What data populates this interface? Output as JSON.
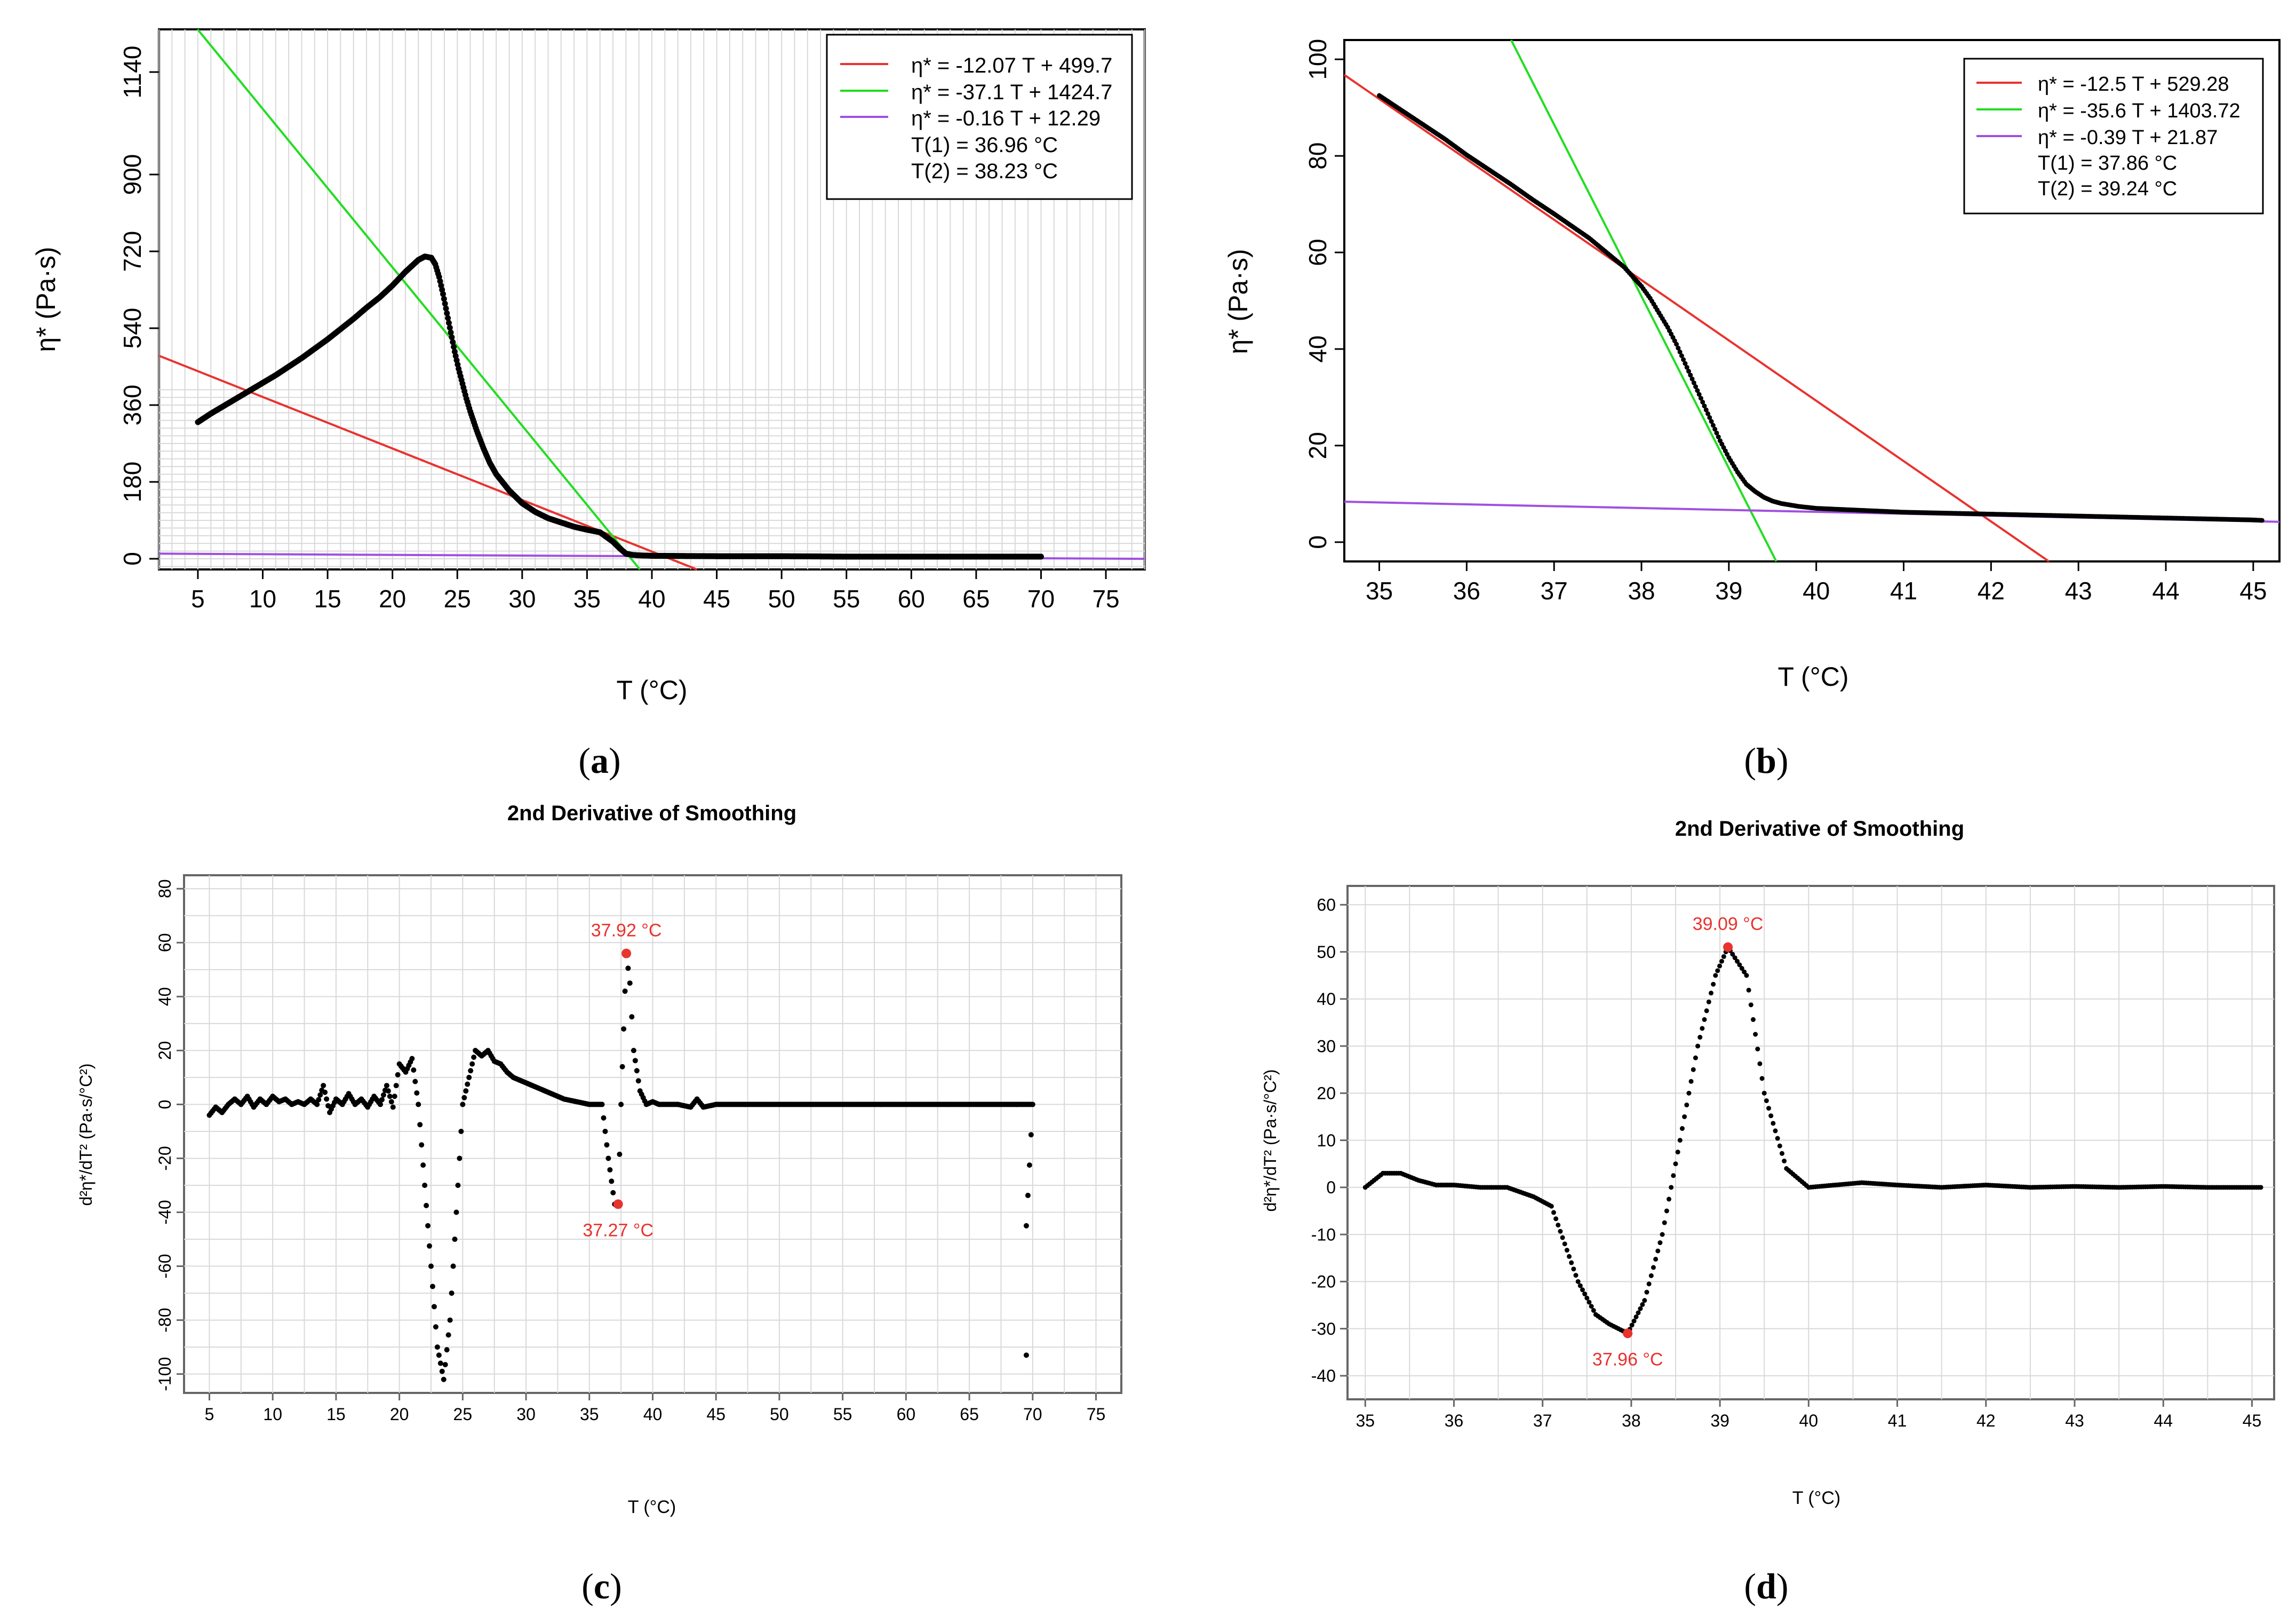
{
  "colors": {
    "red": "#e8332e",
    "green": "#22dd22",
    "purple": "#a050e0",
    "grid": "#d9d9d9",
    "data": "#000000",
    "annot": "#e8332e",
    "panel_bg": "#ffffff"
  },
  "panels": [
    {
      "label": "(a)",
      "label_parts": [
        "(",
        "a",
        ")"
      ],
      "title": "",
      "xlabel": "T (°C)",
      "ylabel": "η* (Pa·s)",
      "legend": {
        "lines": [
          {
            "text": "η* = -12.07 T + 499.7",
            "color": "red"
          },
          {
            "text": "η* = -37.1 T + 1424.7",
            "color": "green"
          },
          {
            "text": "η* = -0.16 T + 12.29",
            "color": "purple"
          }
        ],
        "extra": [
          "T(1) = 36.96 °C",
          "T(2) = 38.23 °C"
        ]
      }
    },
    {
      "label": "(b)",
      "label_parts": [
        "(",
        "b",
        ")"
      ],
      "title": "",
      "xlabel": "T (°C)",
      "ylabel": "η* (Pa·s)",
      "legend": {
        "lines": [
          {
            "text": "η* = -12.5 T + 529.28",
            "color": "red"
          },
          {
            "text": "η* = -35.6 T + 1403.72",
            "color": "green"
          },
          {
            "text": "η* = -0.39 T + 21.87",
            "color": "purple"
          }
        ],
        "extra": [
          "T(1) = 37.86 °C",
          "T(2) = 39.24 °C"
        ]
      }
    },
    {
      "label": "(c)",
      "label_parts": [
        "(",
        "c",
        ")"
      ],
      "title": "2nd Derivative of Smoothing",
      "xlabel": "T (°C)",
      "ylabel": "d²η*/dT² (Pa·s/°C²)",
      "annotations": [
        {
          "text": "37.92 °C",
          "x": 37.92,
          "y": 56
        },
        {
          "text": "37.27 °C",
          "x": 37.27,
          "y": -37
        }
      ]
    },
    {
      "label": "(d)",
      "label_parts": [
        "(",
        "d",
        ")"
      ],
      "title": "2nd Derivative of Smoothing",
      "xlabel": "T (°C)",
      "ylabel": "d²η*/dT² (Pa·s/°C²)",
      "annotations": [
        {
          "text": "39.09 °C",
          "x": 39.09,
          "y": 51
        },
        {
          "text": "37.96 °C",
          "x": 37.96,
          "y": -31
        }
      ]
    }
  ],
  "chart_data": [
    {
      "type": "scatter",
      "panel": "a",
      "xlim": [
        2,
        78
      ],
      "ylim": [
        -25,
        1240
      ],
      "xticks": [
        5,
        10,
        15,
        20,
        25,
        30,
        35,
        40,
        45,
        50,
        55,
        60,
        65,
        70,
        75
      ],
      "yticks": [
        0,
        180,
        360,
        540,
        720,
        900,
        1140
      ],
      "grid": true,
      "series": [
        {
          "name": "η* data",
          "type": "scatter",
          "color": "data",
          "x": [
            5,
            6,
            7,
            8,
            9,
            10,
            11,
            12,
            13,
            14,
            15,
            16,
            17,
            18,
            19,
            20,
            21,
            22,
            22.5,
            23,
            23.3,
            23.6,
            23.9,
            24.2,
            24.5,
            24.8,
            25.1,
            25.4,
            25.7,
            26,
            26.5,
            27,
            27.5,
            28,
            29,
            30,
            31,
            32,
            33,
            34,
            35,
            36,
            37,
            37.5,
            38,
            38.5,
            39,
            40,
            45,
            50,
            55,
            60,
            65,
            70
          ],
          "y": [
            320,
            340,
            358,
            376,
            394,
            412,
            430,
            450,
            470,
            492,
            514,
            538,
            562,
            588,
            612,
            640,
            672,
            700,
            708,
            705,
            690,
            660,
            620,
            575,
            530,
            485,
            445,
            410,
            375,
            345,
            300,
            260,
            225,
            198,
            160,
            130,
            110,
            95,
            85,
            75,
            68,
            62,
            40,
            25,
            12,
            9,
            8,
            7,
            6,
            6,
            5,
            5,
            5,
            5
          ]
        },
        {
          "name": "η* = -12.07 T + 499.7",
          "type": "line",
          "color": "red",
          "slope": -12.07,
          "intercept": 499.7,
          "x": [
            2,
            78
          ]
        },
        {
          "name": "η* = -37.1 T + 1424.7",
          "type": "line",
          "color": "green",
          "slope": -37.1,
          "intercept": 1424.7,
          "x": [
            2,
            78
          ]
        },
        {
          "name": "η* = -0.16 T + 12.29",
          "type": "line",
          "color": "purple",
          "slope": -0.16,
          "intercept": 12.29,
          "x": [
            2,
            78
          ]
        }
      ]
    },
    {
      "type": "scatter",
      "panel": "b",
      "xlim": [
        34.6,
        45.3
      ],
      "ylim": [
        -4,
        104
      ],
      "xticks": [
        35,
        36,
        37,
        38,
        39,
        40,
        41,
        42,
        43,
        44,
        45
      ],
      "yticks": [
        0,
        20,
        40,
        60,
        80,
        100
      ],
      "grid": false,
      "series": [
        {
          "name": "η* data",
          "type": "scatter",
          "color": "data",
          "x": [
            35,
            35.25,
            35.5,
            35.75,
            36,
            36.25,
            36.5,
            36.75,
            37,
            37.2,
            37.4,
            37.6,
            37.7,
            37.8,
            37.9,
            38,
            38.1,
            38.2,
            38.3,
            38.4,
            38.5,
            38.6,
            38.7,
            38.8,
            38.9,
            39,
            39.1,
            39.2,
            39.3,
            39.4,
            39.5,
            39.6,
            39.8,
            40,
            40.5,
            41,
            41.5,
            42,
            42.5,
            43,
            43.5,
            44,
            44.5,
            45,
            45.1
          ],
          "y": [
            92.5,
            89.5,
            86.5,
            83.5,
            80.2,
            77.2,
            74.2,
            71,
            68,
            65.5,
            63,
            60,
            58.5,
            57,
            55,
            53,
            50.5,
            47.5,
            44.5,
            41,
            37,
            33,
            29,
            25,
            21,
            17.5,
            14.5,
            12,
            10.5,
            9.3,
            8.5,
            8,
            7.4,
            7,
            6.6,
            6.2,
            6,
            5.8,
            5.6,
            5.4,
            5.2,
            5,
            4.8,
            4.6,
            4.5
          ]
        },
        {
          "name": "η* = -12.5 T + 529.28",
          "type": "line",
          "color": "red",
          "slope": -12.5,
          "intercept": 529.28,
          "x": [
            34.6,
            45.3
          ]
        },
        {
          "name": "η* = -35.6 T + 1403.72",
          "type": "line",
          "color": "green",
          "slope": -35.6,
          "intercept": 1403.72,
          "x": [
            34.6,
            45.3
          ]
        },
        {
          "name": "η* = -0.39 T + 21.87",
          "type": "line",
          "color": "purple",
          "slope": -0.39,
          "intercept": 21.87,
          "x": [
            34.6,
            45.3
          ]
        }
      ]
    },
    {
      "type": "scatter",
      "panel": "c",
      "title": "2nd Derivative of Smoothing",
      "xlim": [
        3,
        77
      ],
      "ylim": [
        -107,
        85
      ],
      "xticks": [
        5,
        10,
        15,
        20,
        25,
        30,
        35,
        40,
        45,
        50,
        55,
        60,
        65,
        70,
        75
      ],
      "yticks": [
        -100,
        -80,
        -60,
        -40,
        -20,
        0,
        20,
        40,
        60,
        80
      ],
      "grid": true,
      "series": [
        {
          "name": "2nd derivative",
          "type": "scatter",
          "color": "data",
          "x": [
            5,
            5.5,
            6,
            6.5,
            7,
            7.5,
            8,
            8.5,
            9,
            9.5,
            10,
            10.5,
            11,
            11.5,
            12,
            12.5,
            13,
            13.5,
            14,
            14.5,
            15,
            15.5,
            16,
            16.5,
            17,
            17.5,
            18,
            18.5,
            19,
            19.5,
            20,
            20.5,
            21,
            21.5,
            22,
            22.5,
            23,
            23.5,
            24,
            24.5,
            25,
            25.5,
            26,
            26.5,
            27,
            27.5,
            28,
            28.5,
            29,
            29.5,
            30,
            31,
            32,
            33,
            34,
            35,
            36,
            36.5,
            37,
            37.27,
            37.5,
            37.92,
            38.2,
            38.5,
            39,
            39.5,
            40,
            40.5,
            41,
            42,
            43,
            43.5,
            44,
            45,
            50,
            55,
            60,
            65,
            69.5,
            70,
            69.5,
            69.5
          ],
          "y": [
            -4,
            -1,
            -3,
            0,
            2,
            0,
            3,
            -1,
            2,
            0,
            3,
            1,
            2,
            0,
            1,
            0,
            2,
            0,
            7,
            -3,
            2,
            0,
            4,
            0,
            2,
            -1,
            3,
            0,
            7,
            -1,
            15,
            12,
            17,
            0,
            -30,
            -60,
            -90,
            -102,
            -80,
            -40,
            0,
            10,
            20,
            18,
            20,
            16,
            15,
            12,
            10,
            9,
            8,
            6,
            4,
            2,
            1,
            0,
            0,
            -20,
            -37,
            -37,
            0,
            56,
            45,
            20,
            5,
            0,
            1,
            0,
            0,
            0,
            -1,
            2,
            -1,
            0,
            0,
            0,
            0,
            0,
            0,
            0,
            -45,
            -93
          ]
        },
        {
          "name": "annotated points",
          "type": "points",
          "color": "red",
          "x": [
            37.92,
            37.27
          ],
          "y": [
            56,
            -37
          ]
        }
      ]
    },
    {
      "type": "scatter",
      "panel": "d",
      "title": "2nd Derivative of Smoothing",
      "xlim": [
        34.8,
        45.25
      ],
      "ylim": [
        -45,
        64
      ],
      "xticks": [
        35,
        36,
        37,
        38,
        39,
        40,
        41,
        42,
        43,
        44,
        45
      ],
      "yticks": [
        -40,
        -30,
        -20,
        -10,
        0,
        10,
        20,
        30,
        40,
        50,
        60
      ],
      "grid": true,
      "series": [
        {
          "name": "2nd derivative",
          "type": "scatter",
          "color": "data",
          "x": [
            35,
            35.2,
            35.4,
            35.6,
            35.8,
            36,
            36.3,
            36.6,
            36.9,
            37.1,
            37.25,
            37.4,
            37.6,
            37.75,
            37.96,
            38.15,
            38.35,
            38.55,
            38.75,
            38.95,
            39.09,
            39.3,
            39.5,
            39.75,
            40,
            40.3,
            40.6,
            41,
            41.5,
            42,
            42.5,
            43,
            43.5,
            44,
            44.5,
            45,
            45.1
          ],
          "y": [
            0,
            3,
            3,
            1.5,
            0.5,
            0.5,
            0,
            0,
            -2,
            -4,
            -12,
            -20,
            -27,
            -29,
            -31,
            -24,
            -10,
            10,
            30,
            45,
            51,
            45,
            20,
            4,
            0,
            0.5,
            1,
            0.5,
            0,
            0.5,
            0,
            0.2,
            0,
            0.2,
            0,
            0,
            0
          ]
        },
        {
          "name": "annotated points",
          "type": "points",
          "color": "red",
          "x": [
            39.09,
            37.96
          ],
          "y": [
            51,
            -31
          ]
        }
      ]
    }
  ]
}
